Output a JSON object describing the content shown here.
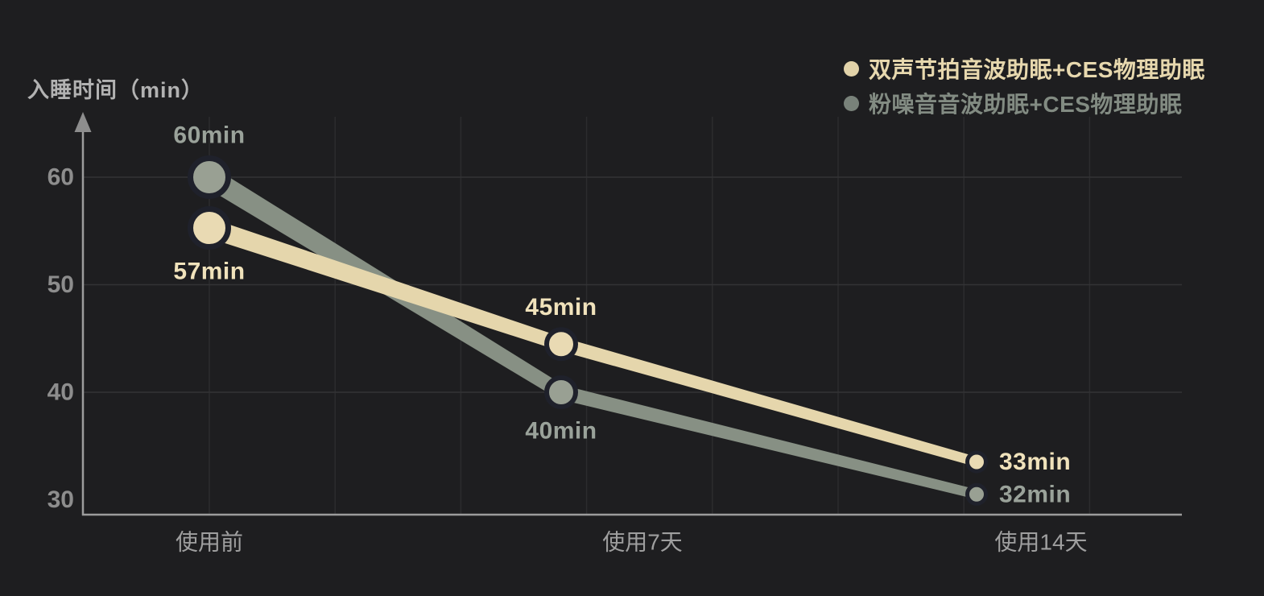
{
  "chart_data": {
    "type": "line",
    "title": "",
    "ylabel": "入睡时间（min）",
    "xlabel": "",
    "categories": [
      "使用前",
      "使用7天",
      "使用14天"
    ],
    "y_ticks": [
      60,
      50,
      40,
      30
    ],
    "ylim": [
      30,
      63
    ],
    "grid": true,
    "legend_position": "top-right",
    "series": [
      {
        "name": "双声节拍音波助眠+CES物理助眠",
        "values": [
          57,
          45,
          33
        ],
        "point_labels": [
          "57min",
          "45min",
          "33min"
        ],
        "label_placement": [
          "below",
          "above",
          "right"
        ],
        "color": "#e5d6ac",
        "marker_fill": "#e9dab3",
        "label_color": "#f0e2bb",
        "legend_dot_color": "#e2d3a9",
        "legend_text_color": "#e7d8ae"
      },
      {
        "name": "粉噪音音波助眠+CES物理助眠",
        "values": [
          60,
          40,
          32
        ],
        "point_labels": [
          "60min",
          "40min",
          "32min"
        ],
        "label_placement": [
          "above",
          "below",
          "right"
        ],
        "color": "#879084",
        "marker_fill": "#99a093",
        "label_color": "#9aa29a",
        "legend_dot_color": "#79827a",
        "legend_text_color": "#828b82"
      }
    ],
    "render_hints": {
      "point_dy": [
        [
          23,
          7,
          -7
        ],
        [
          0,
          0,
          20
        ]
      ]
    }
  },
  "colors": {
    "background": "#1e1e20",
    "axis": "#9c9c9c",
    "arrow": "#8d8d8d",
    "grid_vertical": "#2c2c2e",
    "grid_horizontal": "#333335",
    "tick_label": "#8d8d8d",
    "category_label": "#9f9f9f",
    "axis_title": "#b2b2b2",
    "marker_ring": "#1f212b"
  }
}
